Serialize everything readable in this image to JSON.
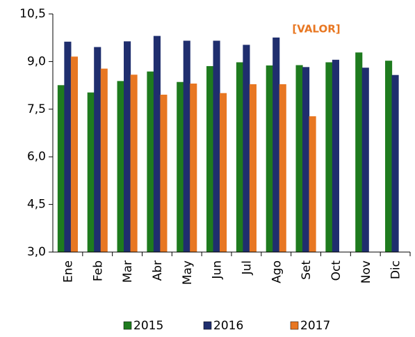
{
  "chart_data": {
    "type": "bar",
    "categories": [
      "Ene",
      "Feb",
      "Mar",
      "Abr",
      "May",
      "Jun",
      "Jul",
      "Ago",
      "Set",
      "Oct",
      "Nov",
      "Dic"
    ],
    "series": [
      {
        "name": "2015",
        "color": "#1e7b1e",
        "values": [
          8.25,
          8.02,
          8.38,
          8.68,
          8.35,
          8.85,
          8.97,
          8.87,
          8.88,
          8.97,
          9.28,
          9.02
        ]
      },
      {
        "name": "2016",
        "color": "#1f2e6e",
        "values": [
          9.62,
          9.45,
          9.63,
          9.8,
          9.65,
          9.65,
          9.52,
          9.75,
          8.82,
          9.05,
          8.8,
          8.57
        ]
      },
      {
        "name": "2017",
        "color": "#e87722",
        "values": [
          9.15,
          8.77,
          8.58,
          7.95,
          8.3,
          8.0,
          8.28,
          8.28,
          7.27,
          3.0,
          3.0,
          3.0
        ]
      }
    ],
    "annotations": [
      "[VALOR]"
    ],
    "ylim": [
      3.0,
      10.5
    ],
    "yticks": [
      {
        "value": 3.0,
        "label": "3,0"
      },
      {
        "value": 4.5,
        "label": "4,5"
      },
      {
        "value": 6.0,
        "label": "6,0"
      },
      {
        "value": 7.5,
        "label": "7,5"
      },
      {
        "value": 9.0,
        "label": "9,0"
      },
      {
        "value": 10.5,
        "label": "10,5"
      }
    ],
    "grid": false,
    "legend": "bottom"
  }
}
